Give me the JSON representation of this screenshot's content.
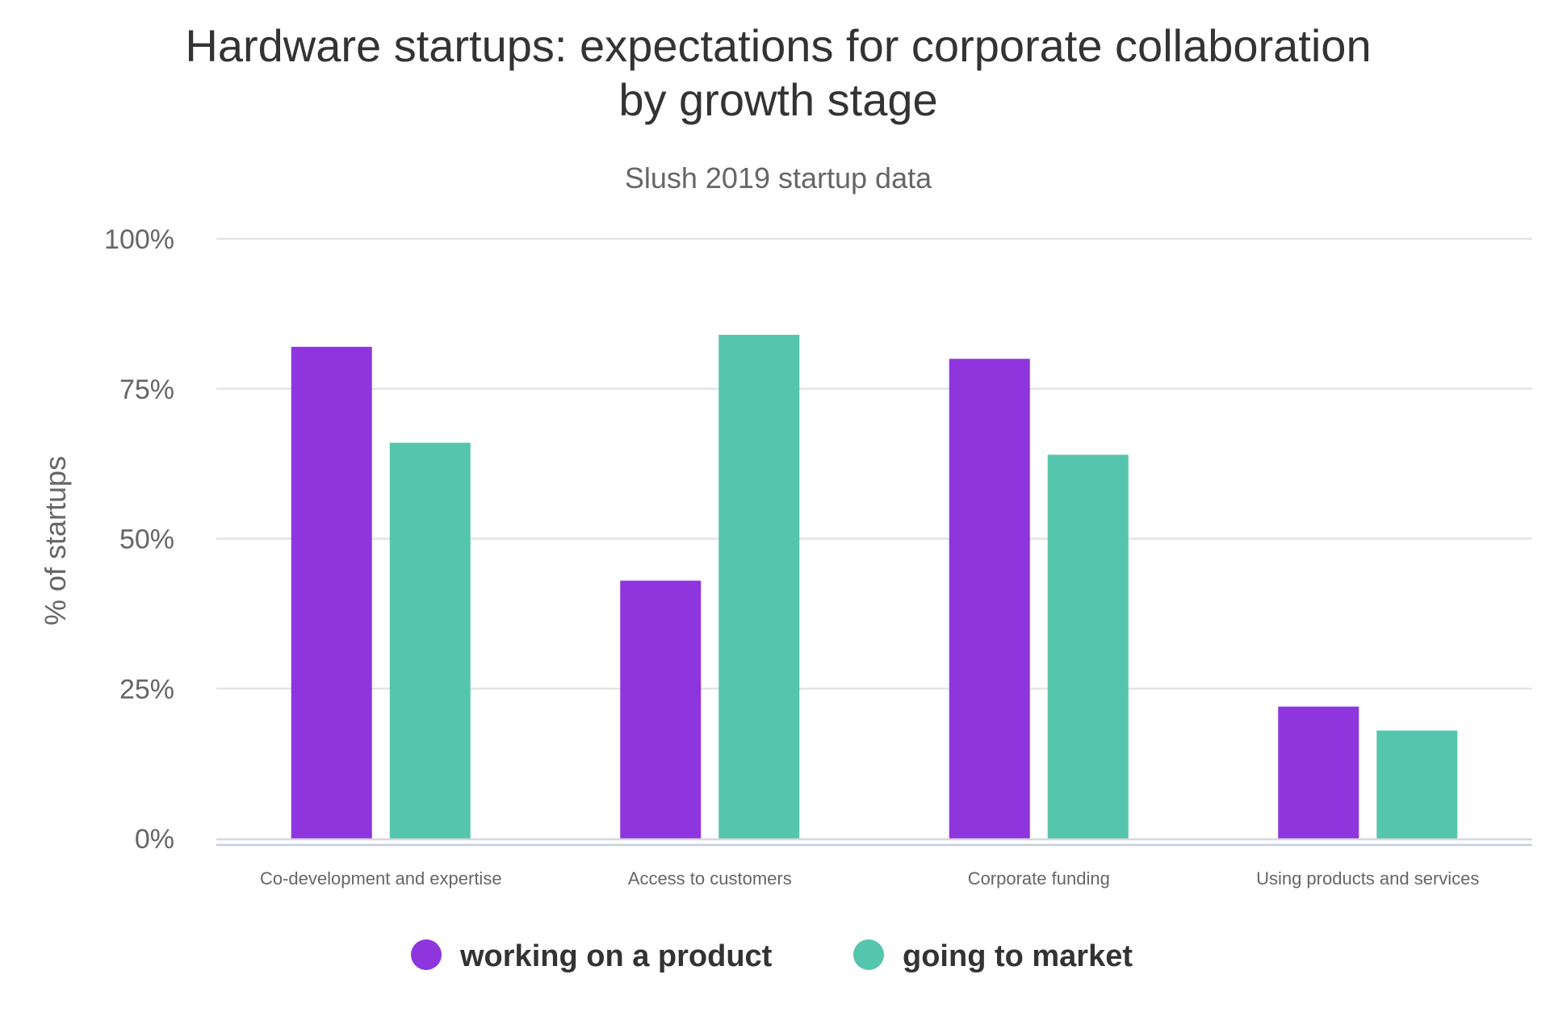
{
  "chart_data": {
    "type": "bar",
    "title": "Hardware startups: expectations for corporate collaboration by growth stage",
    "title_lines": [
      "Hardware startups: expectations for corporate collaboration",
      "by growth stage"
    ],
    "subtitle": "Slush 2019 startup data",
    "ylabel": "% of startups",
    "xlabel": "",
    "ylim": [
      0,
      100
    ],
    "yticks": [
      0,
      25,
      50,
      75,
      100
    ],
    "ytick_labels": [
      "0%",
      "25%",
      "50%",
      "75%",
      "100%"
    ],
    "categories": [
      "Co-development and expertise",
      "Access to customers",
      "Corporate funding",
      "Using products and services"
    ],
    "series": [
      {
        "name": "working on a product",
        "color": "#8e35de",
        "values": [
          82,
          43,
          80,
          22
        ]
      },
      {
        "name": "going to market",
        "color": "#55c6ad",
        "values": [
          66,
          84,
          64,
          18
        ]
      }
    ],
    "grid": true,
    "legend_position": "bottom"
  }
}
